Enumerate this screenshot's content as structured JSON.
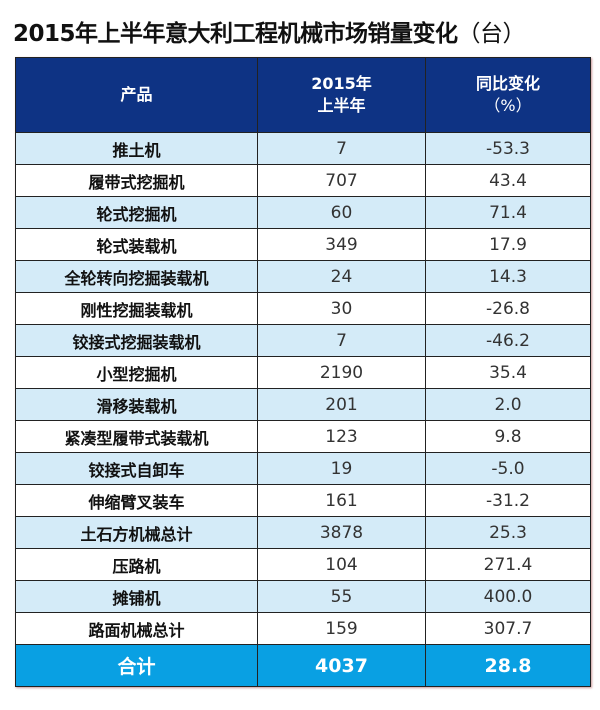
{
  "title": "2015年上半年意大利工程机械市场销量变化",
  "unit": "（台）",
  "headers": {
    "product": "产品",
    "period_line1": "2015年",
    "period_line2": "上半年",
    "change_line1": "同比变化",
    "change_line2": "（%）"
  },
  "colors": {
    "header": "#0e3384",
    "light_row": "#d4ebf8",
    "total_row": "#09a0e3"
  },
  "rows": [
    {
      "name": "推土机",
      "value": "7",
      "change": "-53.3"
    },
    {
      "name": "履带式挖掘机",
      "value": "707",
      "change": "43.4"
    },
    {
      "name": "轮式挖掘机",
      "value": "60",
      "change": "71.4"
    },
    {
      "name": "轮式装载机",
      "value": "349",
      "change": "17.9"
    },
    {
      "name": "全轮转向挖掘装载机",
      "value": "24",
      "change": "14.3"
    },
    {
      "name": "刚性挖掘装载机",
      "value": "30",
      "change": "-26.8"
    },
    {
      "name": "铰接式挖掘装载机",
      "value": "7",
      "change": "-46.2"
    },
    {
      "name": "小型挖掘机",
      "value": "2190",
      "change": "35.4"
    },
    {
      "name": "滑移装载机",
      "value": "201",
      "change": "2.0"
    },
    {
      "name": "紧凑型履带式装载机",
      "value": "123",
      "change": "9.8"
    },
    {
      "name": "铰接式自卸车",
      "value": "19",
      "change": "-5.0"
    },
    {
      "name": "伸缩臂叉装车",
      "value": "161",
      "change": "-31.2"
    },
    {
      "name": "土石方机械总计",
      "value": "3878",
      "change": "25.3"
    },
    {
      "name": "压路机",
      "value": "104",
      "change": "271.4"
    },
    {
      "name": "摊铺机",
      "value": "55",
      "change": "400.0"
    },
    {
      "name": "路面机械总计",
      "value": "159",
      "change": "307.7"
    }
  ],
  "total": {
    "name": "合计",
    "value": "4037",
    "change": "28.8"
  }
}
